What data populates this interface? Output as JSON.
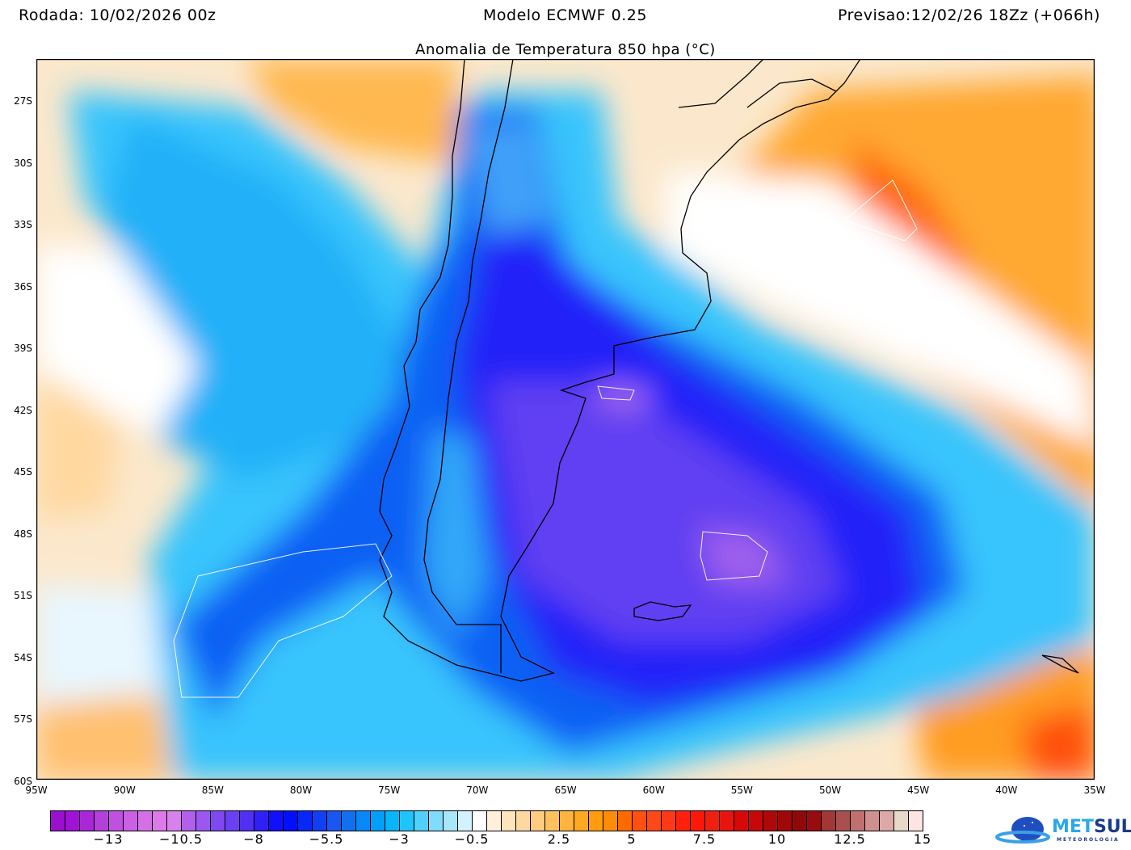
{
  "header": {
    "run": "Rodada: 10/02/2026 00z",
    "model": "Modelo ECMWF 0.25",
    "forecast": "Previsao:12/02/26 18Zz (+066h)"
  },
  "title": "Anomalia de Temperatura 850 hpa (°C)",
  "lat_labels": [
    "27S",
    "30S",
    "33S",
    "36S",
    "39S",
    "42S",
    "45S",
    "48S",
    "51S",
    "54S",
    "57S",
    "60S"
  ],
  "lon_labels": [
    "95W",
    "90W",
    "85W",
    "80W",
    "75W",
    "70W",
    "65W",
    "60W",
    "55W",
    "50W",
    "45W",
    "40W",
    "35W"
  ],
  "colorbar": {
    "min": -15,
    "max": 15,
    "step": 0.5,
    "labels": [
      "−13",
      "−10.5",
      "−8",
      "−5.5",
      "−3",
      "−0.5",
      "2.5",
      "5",
      "7.5",
      "10",
      "12.5",
      "15"
    ],
    "label_values": [
      -13,
      -10.5,
      -8,
      -5.5,
      -3,
      -0.5,
      2.5,
      5,
      7.5,
      10,
      12.5,
      15
    ],
    "colors": [
      "#9a10d0",
      "#a012d8",
      "#a828d8",
      "#b440dc",
      "#c050e0",
      "#cc60e4",
      "#d470e6",
      "#dc7ae8",
      "#d880ec",
      "#b060ec",
      "#9a58f0",
      "#8048f0",
      "#6a40f2",
      "#5030f4",
      "#3020f8",
      "#1010fa",
      "#0010ff",
      "#0828f8",
      "#1040f4",
      "#1858f0",
      "#1070f0",
      "#0888f8",
      "#00a0fa",
      "#08b4fa",
      "#20c4fc",
      "#50d0fc",
      "#80dcfc",
      "#a8e6fc",
      "#d4f2fe",
      "#ffffff",
      "#fff0dc",
      "#ffe4bc",
      "#ffd8a0",
      "#ffcc80",
      "#ffc060",
      "#ffb440",
      "#ffa820",
      "#ff9c10",
      "#ff8c08",
      "#ff6a00",
      "#ff5010",
      "#ff4818",
      "#ff3818",
      "#ff2010",
      "#ff1808",
      "#f02010",
      "#e81410",
      "#d80808",
      "#c80808",
      "#b00808",
      "#a00808",
      "#900808",
      "#980c10",
      "#a03838",
      "#a85050",
      "#c07070",
      "#d09090",
      "#dca8a8",
      "#e8d8c8",
      "#ffe4e4"
    ]
  },
  "logo": {
    "text_a": "MET",
    "text_b": "SUL",
    "subtitle": "METEOROLOGIA"
  }
}
